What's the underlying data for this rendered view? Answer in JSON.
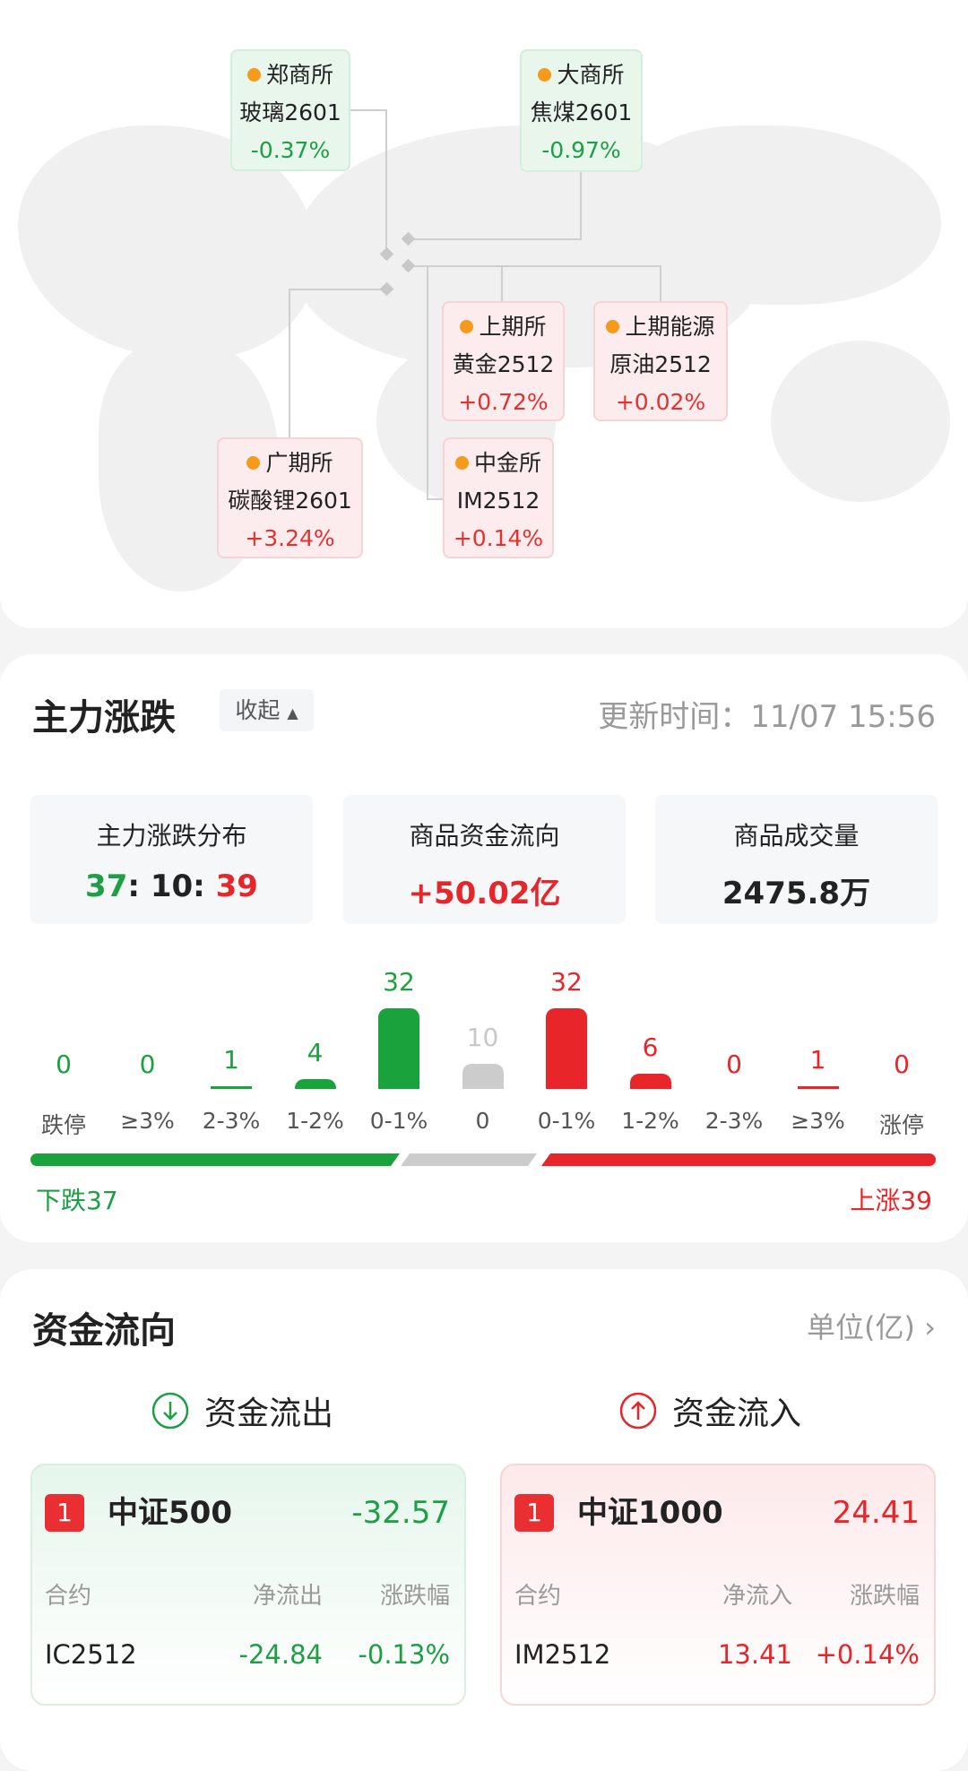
{
  "exchanges": [
    {
      "exchange": "郑商所",
      "contract": "玻璃2601",
      "change": "-0.37%",
      "trend": "down"
    },
    {
      "exchange": "大商所",
      "contract": "焦煤2601",
      "change": "-0.97%",
      "trend": "down"
    },
    {
      "exchange": "上期所",
      "contract": "黄金2512",
      "change": "+0.72%",
      "trend": "up"
    },
    {
      "exchange": "上期能源",
      "contract": "原油2512",
      "change": "+0.02%",
      "trend": "up"
    },
    {
      "exchange": "广期所",
      "contract": "碳酸锂2601",
      "change": "+3.24%",
      "trend": "up"
    },
    {
      "exchange": "中金所",
      "contract": "IM2512",
      "change": "+0.14%",
      "trend": "up"
    }
  ],
  "rise_fall": {
    "title": "主力涨跌",
    "collapse_label": "收起",
    "update_time": "更新时间：11/07 15:56",
    "stats": [
      {
        "label": "主力涨跌分布",
        "down": "37",
        "flat": "10",
        "up": "39",
        "sep": ":"
      },
      {
        "label": "商品资金流向",
        "value": "+50.02亿"
      },
      {
        "label": "商品成交量",
        "value": "2475.8万"
      }
    ],
    "fall_label": "下跌37",
    "rise_label": "上涨39"
  },
  "chart_data": {
    "type": "bar",
    "categories": [
      "跌停",
      "≥3%",
      "2-3%",
      "1-2%",
      "0-1%",
      "0",
      "0-1%",
      "1-2%",
      "2-3%",
      "≥3%",
      "涨停"
    ],
    "values": [
      0,
      0,
      1,
      4,
      32,
      10,
      32,
      6,
      0,
      1,
      0
    ],
    "colors": [
      "#1aa33c",
      "#1aa33c",
      "#1aa33c",
      "#1aa33c",
      "#1aa33c",
      "#cccccc",
      "#e8262a",
      "#e8262a",
      "#e8262a",
      "#e8262a",
      "#e8262a"
    ],
    "summary": {
      "down": 37,
      "flat": 10,
      "up": 39
    }
  },
  "fund_flow": {
    "title": "资金流向",
    "unit_label": "单位(亿)",
    "outflow": {
      "label": "资金流出",
      "rank": "1",
      "name": "中证500",
      "value": "-32.57",
      "col_contract": "合约",
      "col_flow": "净流出",
      "col_change": "涨跌幅",
      "contract": "IC2512",
      "flow": "-24.84",
      "change": "-0.13%"
    },
    "inflow": {
      "label": "资金流入",
      "rank": "1",
      "name": "中证1000",
      "value": "24.41",
      "col_contract": "合约",
      "col_flow": "净流入",
      "col_change": "涨跌幅",
      "contract": "IM2512",
      "flow": "13.41",
      "change": "+0.14%"
    }
  },
  "colors": {
    "up": "#e5262a",
    "down": "#1e9e45",
    "flat": "#cccccc",
    "dot": "#f59a1b"
  }
}
